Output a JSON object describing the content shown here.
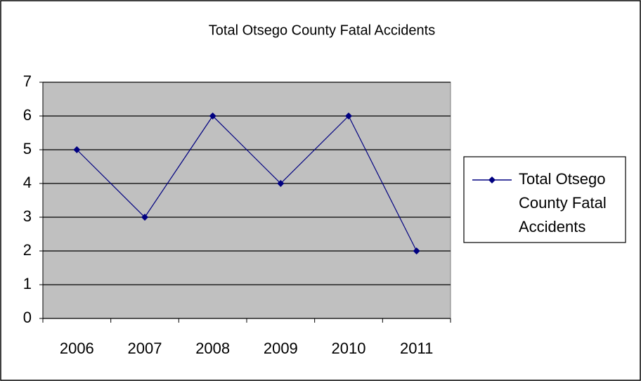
{
  "chart_data": {
    "type": "line",
    "title": "Total Otsego County Fatal Accidents",
    "categories": [
      "2006",
      "2007",
      "2008",
      "2009",
      "2010",
      "2011"
    ],
    "series": [
      {
        "name": "Total Otsego County Fatal Accidents",
        "color": "#000080",
        "values": [
          5,
          3,
          6,
          4,
          6,
          2
        ]
      }
    ],
    "ylim": [
      0,
      7
    ],
    "yticks": [
      0,
      1,
      2,
      3,
      4,
      5,
      6,
      7
    ],
    "grid": true,
    "legend": "right"
  }
}
